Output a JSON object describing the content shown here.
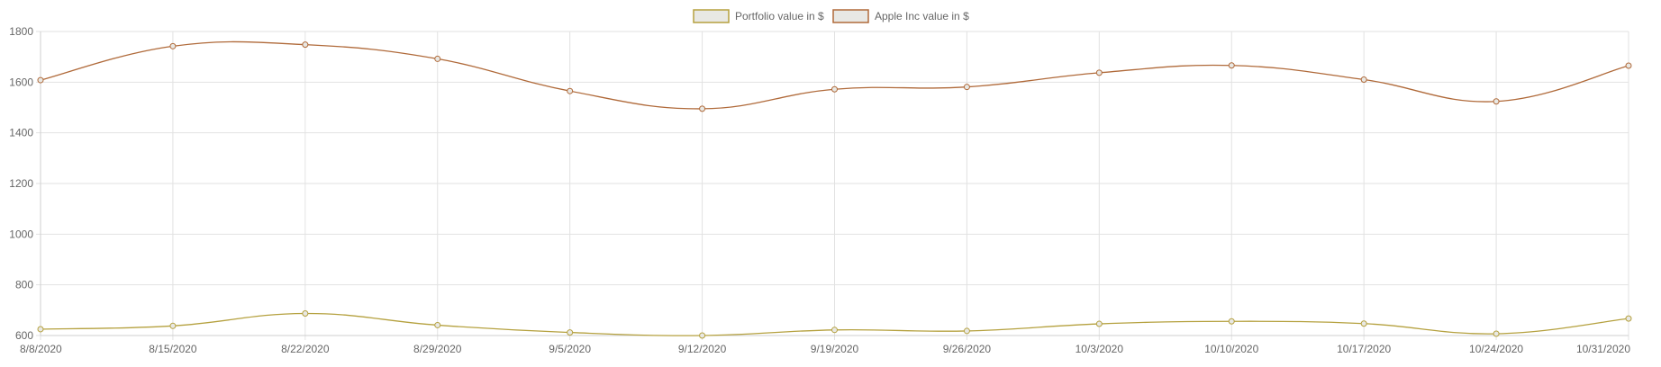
{
  "chart_data": {
    "type": "line",
    "x": [
      "8/8/2020",
      "8/15/2020",
      "8/22/2020",
      "8/29/2020",
      "9/5/2020",
      "9/12/2020",
      "9/19/2020",
      "9/26/2020",
      "10/3/2020",
      "10/10/2020",
      "10/17/2020",
      "10/24/2020",
      "10/31/2020"
    ],
    "ylim": [
      600,
      1800
    ],
    "yticks": [
      "600",
      "800",
      "1000",
      "1200",
      "1400",
      "1600",
      "1800"
    ],
    "grid": true,
    "legend_position": "top-center",
    "series": [
      {
        "name": "Portfolio value in $",
        "color": "#b5a13f",
        "values": [
          625,
          638,
          687,
          641,
          612,
          600,
          622,
          618,
          646,
          656,
          647,
          607,
          667
        ]
      },
      {
        "name": "Apple Inc value in $",
        "color": "#b06a3a",
        "values": [
          1608,
          1742,
          1748,
          1692,
          1565,
          1495,
          1572,
          1581,
          1637,
          1666,
          1610,
          1524,
          1665
        ]
      }
    ]
  }
}
